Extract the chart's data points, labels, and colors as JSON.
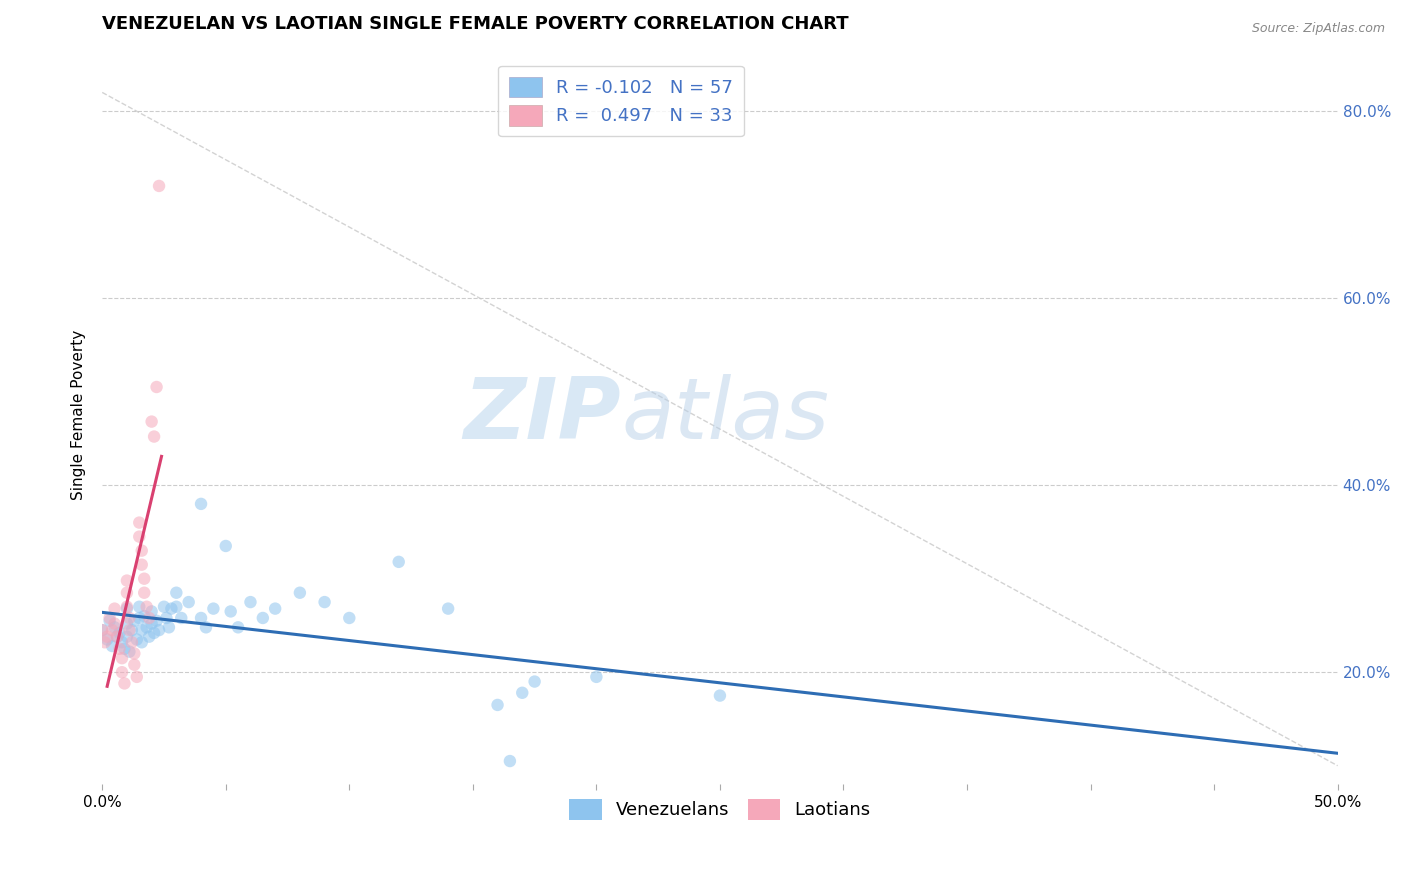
{
  "title": "VENEZUELAN VS LAOTIAN SINGLE FEMALE POVERTY CORRELATION CHART",
  "source_text": "Source: ZipAtlas.com",
  "ylabel": "Single Female Poverty",
  "watermark_zip": "ZIP",
  "watermark_atlas": "atlas",
  "x_min": 0.0,
  "x_max": 0.5,
  "y_min": 0.08,
  "y_max": 0.87,
  "x_ticks": [
    0.0,
    0.05,
    0.1,
    0.15,
    0.2,
    0.25,
    0.3,
    0.35,
    0.4,
    0.45,
    0.5
  ],
  "y_ticks": [
    0.2,
    0.4,
    0.6,
    0.8
  ],
  "y_tick_labels": [
    "20.0%",
    "40.0%",
    "60.0%",
    "80.0%"
  ],
  "venezuelan_color": "#8EC4EE",
  "laotian_color": "#F5A8BA",
  "venezuelan_line_color": "#2E6DB4",
  "laotian_line_color": "#D94070",
  "r_venezuelan": -0.102,
  "n_venezuelan": 57,
  "r_laotian": 0.497,
  "n_laotian": 33,
  "venezuelan_data": [
    [
      0.0,
      0.245
    ],
    [
      0.002,
      0.235
    ],
    [
      0.003,
      0.255
    ],
    [
      0.004,
      0.228
    ],
    [
      0.005,
      0.248
    ],
    [
      0.006,
      0.238
    ],
    [
      0.007,
      0.242
    ],
    [
      0.008,
      0.232
    ],
    [
      0.009,
      0.225
    ],
    [
      0.01,
      0.268
    ],
    [
      0.01,
      0.252
    ],
    [
      0.01,
      0.238
    ],
    [
      0.011,
      0.222
    ],
    [
      0.012,
      0.245
    ],
    [
      0.013,
      0.255
    ],
    [
      0.014,
      0.235
    ],
    [
      0.015,
      0.27
    ],
    [
      0.015,
      0.258
    ],
    [
      0.016,
      0.245
    ],
    [
      0.016,
      0.232
    ],
    [
      0.017,
      0.26
    ],
    [
      0.018,
      0.248
    ],
    [
      0.019,
      0.238
    ],
    [
      0.02,
      0.265
    ],
    [
      0.02,
      0.252
    ],
    [
      0.021,
      0.242
    ],
    [
      0.022,
      0.255
    ],
    [
      0.023,
      0.245
    ],
    [
      0.025,
      0.27
    ],
    [
      0.026,
      0.258
    ],
    [
      0.027,
      0.248
    ],
    [
      0.028,
      0.268
    ],
    [
      0.03,
      0.285
    ],
    [
      0.03,
      0.27
    ],
    [
      0.032,
      0.258
    ],
    [
      0.035,
      0.275
    ],
    [
      0.04,
      0.38
    ],
    [
      0.04,
      0.258
    ],
    [
      0.042,
      0.248
    ],
    [
      0.045,
      0.268
    ],
    [
      0.05,
      0.335
    ],
    [
      0.052,
      0.265
    ],
    [
      0.055,
      0.248
    ],
    [
      0.06,
      0.275
    ],
    [
      0.065,
      0.258
    ],
    [
      0.07,
      0.268
    ],
    [
      0.08,
      0.285
    ],
    [
      0.09,
      0.275
    ],
    [
      0.1,
      0.258
    ],
    [
      0.12,
      0.318
    ],
    [
      0.14,
      0.268
    ],
    [
      0.16,
      0.165
    ],
    [
      0.165,
      0.105
    ],
    [
      0.17,
      0.178
    ],
    [
      0.175,
      0.19
    ],
    [
      0.2,
      0.195
    ],
    [
      0.25,
      0.175
    ]
  ],
  "laotian_data": [
    [
      0.0,
      0.245
    ],
    [
      0.001,
      0.232
    ],
    [
      0.002,
      0.238
    ],
    [
      0.003,
      0.258
    ],
    [
      0.004,
      0.245
    ],
    [
      0.005,
      0.268
    ],
    [
      0.005,
      0.252
    ],
    [
      0.006,
      0.238
    ],
    [
      0.007,
      0.225
    ],
    [
      0.008,
      0.215
    ],
    [
      0.008,
      0.2
    ],
    [
      0.009,
      0.188
    ],
    [
      0.01,
      0.298
    ],
    [
      0.01,
      0.285
    ],
    [
      0.01,
      0.27
    ],
    [
      0.011,
      0.258
    ],
    [
      0.011,
      0.245
    ],
    [
      0.012,
      0.232
    ],
    [
      0.013,
      0.22
    ],
    [
      0.013,
      0.208
    ],
    [
      0.014,
      0.195
    ],
    [
      0.015,
      0.36
    ],
    [
      0.015,
      0.345
    ],
    [
      0.016,
      0.33
    ],
    [
      0.016,
      0.315
    ],
    [
      0.017,
      0.3
    ],
    [
      0.017,
      0.285
    ],
    [
      0.018,
      0.27
    ],
    [
      0.019,
      0.258
    ],
    [
      0.02,
      0.468
    ],
    [
      0.021,
      0.452
    ],
    [
      0.022,
      0.505
    ],
    [
      0.023,
      0.72
    ]
  ],
  "ref_line_x": [
    0.0,
    0.5
  ],
  "ref_line_y": [
    0.87,
    0.08
  ],
  "background_color": "#FFFFFF",
  "grid_color": "#CCCCCC",
  "title_fontsize": 13,
  "axis_label_fontsize": 11,
  "tick_fontsize": 11,
  "legend_fontsize": 13,
  "marker_size": 80,
  "marker_alpha": 0.55
}
